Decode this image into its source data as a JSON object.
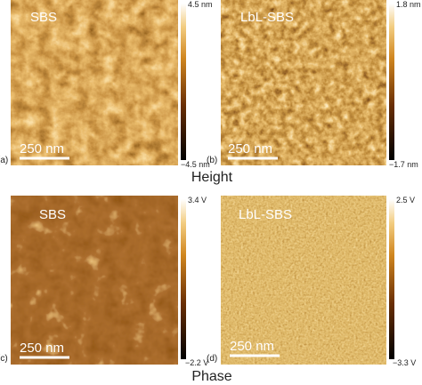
{
  "panels": [
    {
      "label": "(a)",
      "sample": "SBS",
      "scale_bar": "250 nm",
      "colorbar_max": "4.5 nm",
      "colorbar_min": "−4.5 nm"
    },
    {
      "label": "(b)",
      "sample": "LbL-SBS",
      "scale_bar": "250 nm",
      "colorbar_max": "1.8 nm",
      "colorbar_min": "−1.7 nm"
    },
    {
      "label": "(c)",
      "sample": "SBS",
      "scale_bar": "250 nm",
      "colorbar_max": "3.4 V",
      "colorbar_min": "−2.2 V"
    },
    {
      "label": "(d)",
      "sample": "LbL-SBS",
      "scale_bar": "250 nm",
      "colorbar_max": "2.5 V",
      "colorbar_min": "−3.3 V"
    }
  ],
  "row_captions": [
    "Height",
    "Phase"
  ]
}
